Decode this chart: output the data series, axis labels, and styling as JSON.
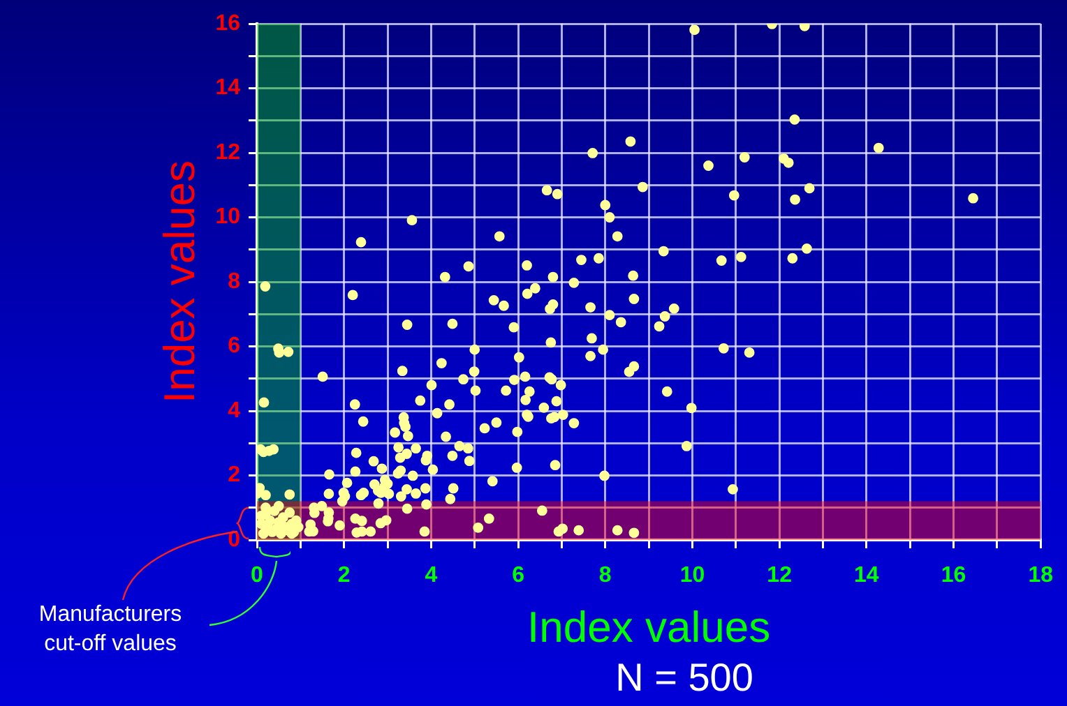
{
  "chart_data": {
    "type": "scatter",
    "xlabel": "Index values",
    "ylabel": "Index values",
    "annotations": [
      "Manufacturers\ncut-off values",
      "N = 500"
    ],
    "xlim": [
      0,
      18
    ],
    "ylim": [
      0,
      16
    ],
    "xticks": [
      0,
      {
        "value": 1,
        "label": null
      },
      2,
      {
        "value": 3,
        "label": null
      },
      4,
      {
        "value": 5,
        "label": null
      },
      6,
      {
        "value": 7,
        "label": null
      },
      8,
      {
        "value": 9,
        "label": null
      },
      10,
      {
        "value": 11,
        "label": null
      },
      12,
      {
        "value": 13,
        "label": null
      },
      14,
      {
        "value": 15,
        "label": null
      },
      16,
      {
        "value": 17,
        "label": null
      },
      18
    ],
    "yticks": [
      0,
      {
        "value": 1,
        "label": null
      },
      2,
      {
        "value": 3,
        "label": null
      },
      4,
      {
        "value": 5,
        "label": null
      },
      6,
      {
        "value": 7,
        "label": null
      },
      8,
      {
        "value": 9,
        "label": null
      },
      10,
      {
        "value": 11,
        "label": null
      },
      12,
      {
        "value": 13,
        "label": null
      },
      14,
      {
        "value": 15,
        "label": null
      },
      16
    ],
    "grid": true,
    "legend": false,
    "marker": "circle",
    "bands": [
      {
        "axis": "x",
        "from": 0,
        "to": 1,
        "color": "#00c000"
      },
      {
        "axis": "y",
        "from": 0,
        "to": 1.2,
        "color": "#ff0000"
      }
    ],
    "series": [
      {
        "color": "#ffff99",
        "x": [
          10.05,
          11.83,
          12.58,
          12.35,
          14.28,
          10.37,
          11.2,
          12.1,
          12.21,
          8.86,
          10.96,
          12.36,
          12.69,
          16.45,
          9.34,
          10.67,
          11.12,
          12.3,
          12.63,
          2.39,
          3.56,
          5.57,
          4.32,
          4.86,
          6.2,
          6.66,
          6.9,
          7.71,
          8.58,
          8.0,
          8.1,
          8.28,
          7.45,
          7.85,
          6.8,
          8.64,
          9.58,
          9.37,
          9.24,
          10.72,
          11.31,
          9.42,
          9.98,
          9.87,
          10.93,
          0.19,
          2.2,
          5.44,
          5.67,
          6.21,
          6.39,
          7.28,
          7.66,
          8.1,
          8.36,
          8.66,
          6.73,
          6.8,
          4.49,
          3.45,
          5.9,
          6.75,
          7.69,
          7.95,
          7.66,
          8.66,
          8.55,
          0.49,
          0.72,
          0.51,
          1.51,
          3.34,
          4.24,
          4.74,
          5.0,
          4.99,
          5.02,
          6.02,
          6.16,
          6.26,
          5.91,
          5.72,
          6.72,
          6.77,
          6.98,
          6.88,
          6.17,
          6.59,
          6.2,
          6.23,
          6.83,
          6.76,
          7.03,
          7.28,
          4.01,
          2.25,
          3.75,
          4.42,
          4.14,
          3.37,
          2.44,
          3.38,
          3.41,
          3.17,
          3.47,
          5.23,
          5.5,
          5.98,
          0.16,
          3.25,
          3.44,
          3.29,
          2.28,
          2.68,
          3.65,
          3.88,
          3.91,
          4.34,
          4.65,
          4.85,
          4.88,
          4.49,
          4.04,
          2.87,
          2.26,
          3.24,
          3.3,
          3.58,
          2.94,
          3.0,
          2.93,
          3.44,
          3.65,
          3.87,
          2.7,
          2.78,
          2.85,
          2.45,
          2.39,
          2.07,
          1.99,
          2.02,
          1.65,
          1.66,
          3.03,
          3.31,
          4.51,
          4.44,
          5.41,
          5.97,
          6.85,
          7.98,
          0.75,
          0.06,
          0.0,
          0.2,
          0.08,
          0.28,
          0.38,
          0.15,
          1.23,
          1.2,
          1.29,
          1.31,
          1.32,
          1.49,
          1.65,
          1.64,
          1.63,
          1.9,
          1.96,
          2.26,
          2.41,
          2.29,
          2.41,
          2.61,
          2.79,
          2.84,
          2.97,
          3.45,
          3.89,
          3.85,
          5.08,
          5.33,
          6.55,
          6.93,
          7.02,
          7.39,
          8.28,
          8.66,
          0.1,
          0.15,
          0.2,
          0.25,
          0.3,
          0.35,
          0.4,
          0.45,
          0.5,
          0.55,
          0.6,
          0.65,
          0.7,
          0.75,
          0.8,
          0.85,
          0.9,
          0.2,
          0.5,
          0.1,
          0.95,
          0.8
        ],
        "values": [
          15.81,
          15.99,
          15.93,
          13.03,
          12.15,
          11.6,
          11.86,
          11.82,
          11.69,
          10.94,
          10.68,
          10.55,
          10.9,
          10.59,
          8.95,
          8.66,
          8.77,
          8.73,
          9.03,
          9.23,
          9.91,
          9.41,
          8.15,
          8.48,
          8.51,
          10.84,
          10.72,
          11.99,
          12.35,
          10.38,
          10.0,
          9.41,
          8.68,
          8.73,
          8.15,
          8.19,
          7.17,
          6.93,
          6.62,
          5.94,
          5.81,
          4.6,
          4.09,
          2.91,
          1.57,
          7.86,
          7.59,
          7.43,
          7.26,
          7.63,
          7.8,
          7.97,
          7.21,
          6.97,
          6.75,
          7.47,
          7.16,
          7.3,
          6.7,
          6.67,
          6.59,
          6.12,
          6.25,
          5.9,
          5.7,
          5.38,
          5.21,
          5.93,
          5.83,
          5.81,
          5.06,
          5.24,
          5.48,
          4.98,
          5.9,
          5.22,
          4.63,
          5.66,
          5.06,
          4.6,
          4.96,
          4.63,
          5.04,
          4.98,
          4.8,
          4.3,
          4.34,
          4.1,
          3.88,
          3.82,
          3.81,
          3.77,
          3.88,
          3.62,
          4.8,
          4.2,
          4.32,
          4.2,
          3.93,
          3.8,
          3.67,
          3.62,
          3.51,
          3.33,
          3.22,
          3.46,
          3.64,
          3.35,
          4.26,
          2.87,
          2.67,
          2.55,
          2.7,
          2.44,
          2.84,
          2.47,
          2.61,
          3.2,
          2.91,
          2.84,
          2.45,
          2.61,
          2.18,
          2.21,
          2.12,
          2.06,
          2.15,
          1.99,
          1.86,
          1.74,
          1.66,
          1.57,
          1.44,
          1.6,
          1.72,
          1.53,
          1.46,
          1.46,
          1.39,
          1.77,
          1.46,
          1.35,
          1.43,
          2.03,
          1.43,
          1.35,
          1.6,
          1.27,
          1.82,
          2.24,
          2.32,
          1.99,
          1.41,
          1.61,
          1.44,
          1.39,
          2.81,
          2.76,
          2.81,
          2.73,
          0.48,
          0.26,
          0.27,
          1.0,
          0.84,
          1.05,
          0.85,
          0.66,
          0.58,
          0.45,
          1.2,
          0.66,
          0.59,
          0.23,
          0.26,
          0.26,
          1.13,
          0.52,
          0.61,
          0.97,
          1.1,
          0.26,
          0.38,
          0.66,
          0.91,
          0.26,
          0.35,
          0.3,
          0.3,
          0.22,
          0.5,
          0.2,
          0.8,
          0.4,
          0.6,
          0.25,
          0.9,
          0.35,
          0.55,
          0.2,
          0.7,
          0.4,
          0.3,
          0.85,
          0.5,
          0.25,
          0.6,
          1.0,
          1.05,
          0.75,
          0.4,
          0.2
        ]
      }
    ]
  }
}
